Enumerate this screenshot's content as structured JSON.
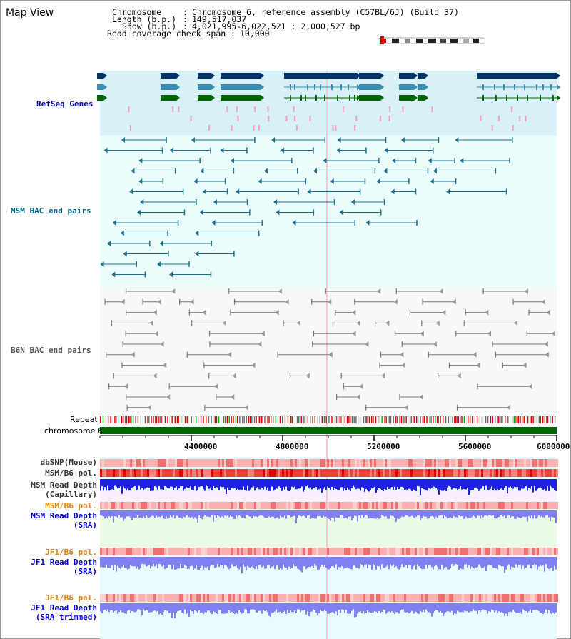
{
  "title": "Map View",
  "header": {
    "chromosome_key": "Chromosome",
    "chromosome_value": "Chromosome 6, reference assembly (C57BL/6J) (Build 37)",
    "length_key": "Length (b.p.)",
    "length_value": "149,517,037",
    "show_key": "Show (b.p.)",
    "show_value": "4,021,995-6,022,521 : 2,000,527 bp",
    "coverage_key": "Read coverage check span",
    "coverage_value": "10,000"
  },
  "tracks": {
    "refseq": "RefSeq Genes",
    "msm_bac": "MSM BAC end pairs",
    "b6n_bac": "B6N BAC end pairs",
    "repeat": "Repeat",
    "chromosome": "chromosome 6",
    "dbsnp": "dbSNP(Mouse)",
    "msm_b6_pol": "MSM/B6 pol.",
    "msm_depth_cap_1": "MSM Read Depth",
    "msm_depth_cap_2": "(Capillary)",
    "msm_b6_pol_sra": "MSM/B6 pol.",
    "msm_depth_sra_1": "MSM Read Depth",
    "msm_depth_sra_2": "(SRA)",
    "jf1_b6_pol": "JF1/B6 pol.",
    "jf1_depth_sra_1": "JF1 Read Depth",
    "jf1_depth_sra_2": "(SRA)",
    "jf1_b6_pol_trim": "JF1/B6 pol.",
    "jf1_depth_trim_1": "JF1 Read Depth",
    "jf1_depth_trim_2": "(SRA trimmed)"
  },
  "axis": {
    "ticks": [
      "4400000",
      "4800000",
      "5200000",
      "5600000",
      "6000000"
    ]
  },
  "colors": {
    "refseq_bg": "#d8f0f8",
    "track_bg": "#eafcfc",
    "gray_bg": "#f6f8fa",
    "navy": "#003366",
    "teal": "#3d8db0",
    "green": "#006600",
    "msm_line": "#1f6f8f",
    "b6n_line": "#777777",
    "depth_blue": "#2020e0",
    "depth_violet": "#8080f0",
    "pol_red": "#f08080",
    "label_navy": "#000099",
    "label_orange": "#e08800",
    "label_blue": "#0000cc",
    "label_teal": "#006688"
  }
}
